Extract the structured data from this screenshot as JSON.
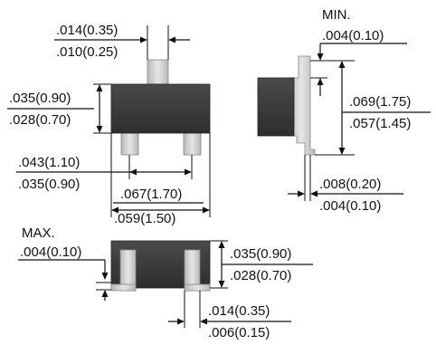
{
  "package_drawing": {
    "lead_width_top": {
      "max": ".014(0.35)",
      "min": ".010(0.25)"
    },
    "body_width_top": {
      "max": ".035(0.90)",
      "min": ".028(0.70)"
    },
    "lead_pitch": {
      "max": ".043(1.10)",
      "min": ".035(0.90)"
    },
    "lead_span": {
      "max": ".067(1.70)",
      "min": ".059(1.50)"
    },
    "side_standoff": {
      "label": "MIN.",
      "value": ".004(0.10)"
    },
    "overall_height": {
      "max": ".069(1.75)",
      "min": ".057(1.45)"
    },
    "lead_thickness": {
      "max": ".008(0.20)",
      "min": ".004(0.10)"
    },
    "bottom_standoff": {
      "label": "MAX.",
      "value": ".004(0.10)"
    },
    "body_thickness": {
      "max": ".035(0.90)",
      "min": ".028(0.70)"
    },
    "lead_width_bottom": {
      "max": ".014(0.35)",
      "min": ".006(0.15)"
    }
  },
  "colors": {
    "body": "#3c3c3c",
    "lead": "#cfcfcf",
    "line": "#111111"
  }
}
